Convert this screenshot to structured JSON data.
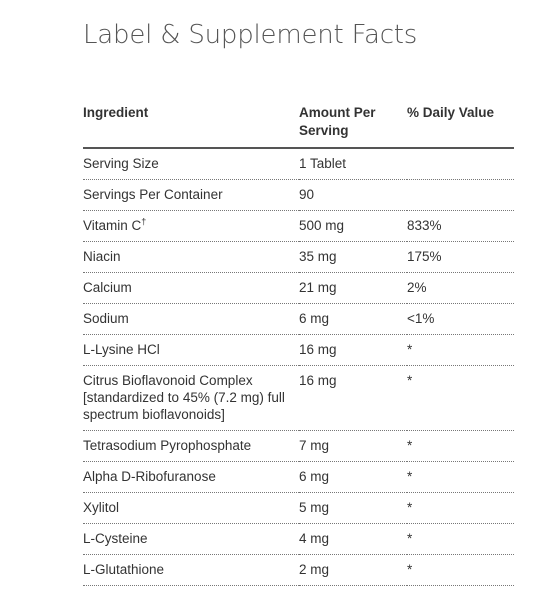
{
  "title": "Label & Supplement Facts",
  "headers": {
    "ingredient": "Ingredient",
    "amount": "Amount Per Serving",
    "dv": "% Daily Value"
  },
  "rows": [
    {
      "name": "Serving Size",
      "amount": "1 Tablet",
      "dv": ""
    },
    {
      "name": "Servings Per Container",
      "amount": "90",
      "dv": ""
    },
    {
      "name": "Vitamin C",
      "sup": "†",
      "amount": "500 mg",
      "dv": "833%"
    },
    {
      "name": "Niacin",
      "amount": "35 mg",
      "dv": "175%"
    },
    {
      "name": "Calcium",
      "amount": "21 mg",
      "dv": "2%"
    },
    {
      "name": "Sodium",
      "amount": "6 mg",
      "dv": "<1%"
    },
    {
      "name": "L-Lysine HCl",
      "amount": "16 mg",
      "dv": "*"
    },
    {
      "name": "Citrus Bioflavonoid Complex [standardized to 45% (7.2 mg) full spectrum bioflavonoids]",
      "amount": "16 mg",
      "dv": "*"
    },
    {
      "name": "Tetrasodium Pyrophosphate",
      "amount": "7 mg",
      "dv": "*"
    },
    {
      "name": "Alpha D-Ribofuranose",
      "amount": "6 mg",
      "dv": "*"
    },
    {
      "name": "Xylitol",
      "amount": "5 mg",
      "dv": "*"
    },
    {
      "name": "L-Cysteine",
      "amount": "4 mg",
      "dv": "*"
    },
    {
      "name": "L-Glutathione",
      "amount": "2 mg",
      "dv": "*"
    }
  ]
}
